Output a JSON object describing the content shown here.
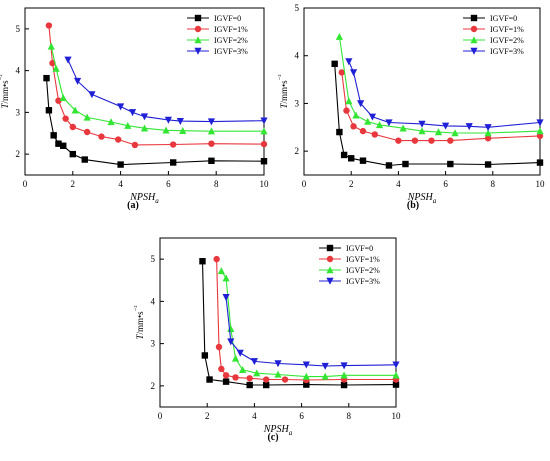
{
  "panel_labels": [
    "(a)",
    "(b)",
    "(c)"
  ],
  "colors": {
    "IGVF=0": "#000000",
    "IGVF=1%": "#e8383d",
    "IGVF=2%": "#33e633",
    "IGVF=3%": "#1f1fd6"
  },
  "chart_data": [
    {
      "type": "line",
      "panel": "(a)",
      "ylabel": "T/mm•s⁻²",
      "xlabel": "NPSHa",
      "xlim": [
        0,
        10
      ],
      "ylim": [
        1.5,
        5.5
      ],
      "xticks": [
        0,
        2,
        4,
        6,
        8,
        10
      ],
      "yticks": [
        2,
        3,
        4,
        5
      ],
      "legend_position": "top-right",
      "series": [
        {
          "name": "IGVF=0",
          "marker": "square",
          "color": "#000000",
          "x": [
            0.9,
            1.0,
            1.2,
            1.4,
            1.6,
            2.0,
            2.5,
            4.0,
            6.2,
            7.8,
            10.0
          ],
          "y": [
            3.82,
            3.05,
            2.45,
            2.25,
            2.2,
            2.0,
            1.87,
            1.75,
            1.8,
            1.84,
            1.83
          ]
        },
        {
          "name": "IGVF=1%",
          "marker": "circle",
          "color": "#e8383d",
          "x": [
            1.0,
            1.15,
            1.4,
            1.7,
            2.0,
            2.6,
            3.2,
            3.9,
            4.6,
            6.2,
            7.8,
            10.0
          ],
          "y": [
            5.08,
            4.18,
            3.28,
            2.85,
            2.65,
            2.53,
            2.42,
            2.35,
            2.22,
            2.23,
            2.25,
            2.24
          ]
        },
        {
          "name": "IGVF=2%",
          "marker": "triangle-up",
          "color": "#33e633",
          "x": [
            1.1,
            1.3,
            1.6,
            2.1,
            2.6,
            3.6,
            4.3,
            5.0,
            5.9,
            6.6,
            7.8,
            10.0
          ],
          "y": [
            4.58,
            4.05,
            3.35,
            3.05,
            2.88,
            2.77,
            2.68,
            2.62,
            2.57,
            2.56,
            2.55,
            2.55
          ]
        },
        {
          "name": "IGVF=3%",
          "marker": "triangle-down",
          "color": "#1f1fd6",
          "x": [
            1.8,
            2.2,
            2.8,
            4.0,
            4.5,
            5.0,
            6.0,
            6.5,
            7.8,
            10.0
          ],
          "y": [
            4.26,
            3.75,
            3.43,
            3.14,
            3.0,
            2.9,
            2.82,
            2.79,
            2.78,
            2.8
          ]
        }
      ]
    },
    {
      "type": "line",
      "panel": "(b)",
      "ylabel": "T/mm•s⁻²",
      "xlabel": "NPSHa",
      "xlim": [
        0,
        10
      ],
      "ylim": [
        1.5,
        5.0
      ],
      "xticks": [
        0,
        2,
        4,
        6,
        8,
        10
      ],
      "yticks": [
        2,
        3,
        4,
        5
      ],
      "legend_position": "top-right",
      "series": [
        {
          "name": "IGVF=0",
          "marker": "square",
          "color": "#000000",
          "x": [
            1.3,
            1.5,
            1.7,
            2.0,
            2.5,
            3.6,
            4.3,
            6.2,
            7.8,
            10.0
          ],
          "y": [
            3.83,
            2.4,
            1.92,
            1.85,
            1.8,
            1.7,
            1.73,
            1.73,
            1.72,
            1.76
          ]
        },
        {
          "name": "IGVF=1%",
          "marker": "circle",
          "color": "#e8383d",
          "x": [
            1.6,
            1.8,
            2.1,
            2.5,
            3.0,
            4.0,
            4.7,
            5.4,
            6.2,
            7.8,
            10.0
          ],
          "y": [
            3.65,
            2.85,
            2.52,
            2.42,
            2.35,
            2.22,
            2.22,
            2.22,
            2.22,
            2.27,
            2.32
          ]
        },
        {
          "name": "IGVF=2%",
          "marker": "triangle-up",
          "color": "#33e633",
          "x": [
            1.5,
            1.9,
            2.2,
            2.7,
            3.2,
            4.2,
            5.0,
            5.7,
            6.4,
            7.8,
            10.0
          ],
          "y": [
            4.4,
            3.05,
            2.75,
            2.62,
            2.55,
            2.48,
            2.42,
            2.4,
            2.38,
            2.38,
            2.42
          ]
        },
        {
          "name": "IGVF=3%",
          "marker": "triangle-down",
          "color": "#1f1fd6",
          "x": [
            1.9,
            2.1,
            2.4,
            2.9,
            3.6,
            5.0,
            6.0,
            7.0,
            7.8,
            10.0
          ],
          "y": [
            3.88,
            3.65,
            3.0,
            2.72,
            2.6,
            2.57,
            2.53,
            2.52,
            2.5,
            2.6
          ]
        }
      ]
    },
    {
      "type": "line",
      "panel": "(c)",
      "ylabel": "T/mm•s⁻²",
      "xlabel": "NPSHa",
      "xlim": [
        0,
        10
      ],
      "ylim": [
        1.5,
        5.5
      ],
      "xticks": [
        0,
        2,
        4,
        6,
        8,
        10
      ],
      "yticks": [
        2,
        3,
        4,
        5
      ],
      "legend_position": "top-right",
      "series": [
        {
          "name": "IGVF=0",
          "marker": "square",
          "color": "#000000",
          "x": [
            1.8,
            1.9,
            2.1,
            2.8,
            3.8,
            4.5,
            6.2,
            7.8,
            10.0
          ],
          "y": [
            4.95,
            2.72,
            2.15,
            2.1,
            2.02,
            2.02,
            2.03,
            2.02,
            2.03
          ]
        },
        {
          "name": "IGVF=1%",
          "marker": "circle",
          "color": "#e8383d",
          "x": [
            2.4,
            2.5,
            2.6,
            2.8,
            3.2,
            3.8,
            4.5,
            5.3,
            6.2,
            7.8,
            10.0
          ],
          "y": [
            5.0,
            2.92,
            2.4,
            2.25,
            2.2,
            2.18,
            2.15,
            2.15,
            2.14,
            2.15,
            2.15
          ]
        },
        {
          "name": "IGVF=2%",
          "marker": "triangle-up",
          "color": "#33e633",
          "x": [
            2.6,
            2.8,
            3.0,
            3.2,
            3.5,
            4.1,
            5.0,
            6.2,
            7.0,
            7.8,
            10.0
          ],
          "y": [
            4.72,
            4.55,
            3.35,
            2.65,
            2.38,
            2.3,
            2.27,
            2.22,
            2.22,
            2.25,
            2.25
          ]
        },
        {
          "name": "IGVF=3%",
          "marker": "triangle-down",
          "color": "#1f1fd6",
          "x": [
            2.8,
            3.0,
            3.4,
            4.0,
            5.0,
            6.2,
            7.0,
            7.8,
            10.0
          ],
          "y": [
            4.1,
            3.05,
            2.78,
            2.58,
            2.53,
            2.5,
            2.47,
            2.48,
            2.5
          ]
        }
      ]
    }
  ]
}
